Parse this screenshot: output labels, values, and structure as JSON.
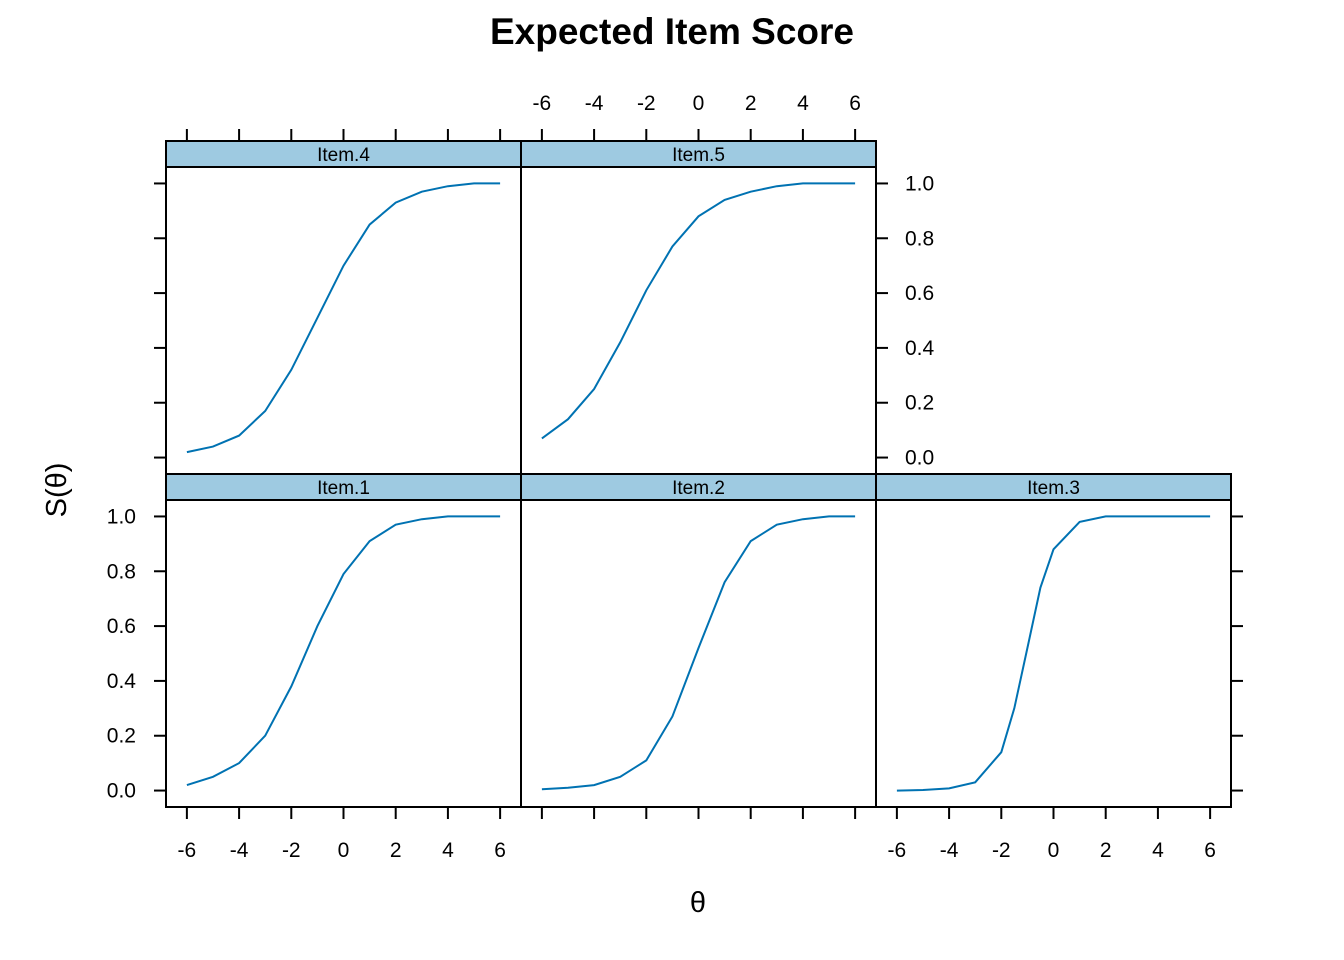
{
  "chart_data": {
    "type": "line",
    "title": "Expected Item Score",
    "xlabel": "θ",
    "ylabel": "S(θ)",
    "xlim": [
      -6.8,
      6.8
    ],
    "ylim": [
      -0.06,
      1.06
    ],
    "x_ticks": [
      "-6",
      "-4",
      "-2",
      "0",
      "2",
      "4",
      "6"
    ],
    "y_ticks": [
      "0.0",
      "0.2",
      "0.4",
      "0.6",
      "0.8",
      "1.0"
    ],
    "panels": [
      {
        "name": "Item.1",
        "x": [
          -6,
          -5,
          -4,
          -3,
          -2,
          -1,
          0,
          1,
          2,
          3,
          4,
          5,
          6
        ],
        "y": [
          0.02,
          0.05,
          0.1,
          0.2,
          0.38,
          0.6,
          0.79,
          0.91,
          0.97,
          0.99,
          1.0,
          1.0,
          1.0
        ]
      },
      {
        "name": "Item.2",
        "x": [
          -6,
          -5,
          -4,
          -3,
          -2,
          -1,
          0,
          1,
          2,
          3,
          4,
          5,
          6
        ],
        "y": [
          0.005,
          0.01,
          0.02,
          0.05,
          0.11,
          0.27,
          0.52,
          0.76,
          0.91,
          0.97,
          0.99,
          1.0,
          1.0
        ]
      },
      {
        "name": "Item.3",
        "x": [
          -6,
          -5,
          -4,
          -3,
          -2,
          -1.5,
          -1,
          -0.5,
          0,
          1,
          2,
          3,
          4,
          5,
          6
        ],
        "y": [
          0.0,
          0.002,
          0.008,
          0.03,
          0.14,
          0.3,
          0.52,
          0.74,
          0.88,
          0.98,
          1.0,
          1.0,
          1.0,
          1.0,
          1.0
        ]
      },
      {
        "name": "Item.4",
        "x": [
          -6,
          -5,
          -4,
          -3,
          -2,
          -1,
          0,
          1,
          2,
          3,
          4,
          5,
          6
        ],
        "y": [
          0.02,
          0.04,
          0.08,
          0.17,
          0.32,
          0.51,
          0.7,
          0.85,
          0.93,
          0.97,
          0.99,
          1.0,
          1.0
        ]
      },
      {
        "name": "Item.5",
        "x": [
          -6,
          -5,
          -4,
          -3,
          -2,
          -1,
          0,
          1,
          2,
          3,
          4,
          5,
          6
        ],
        "y": [
          0.07,
          0.14,
          0.25,
          0.42,
          0.61,
          0.77,
          0.88,
          0.94,
          0.97,
          0.99,
          1.0,
          1.0,
          1.0
        ]
      }
    ]
  }
}
